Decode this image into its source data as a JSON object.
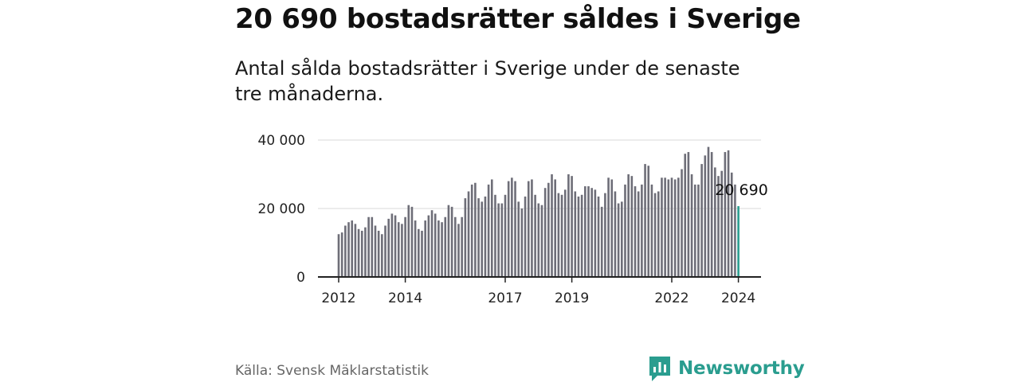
{
  "title": "20 690 bostadsrätter såldes i Sverige",
  "subtitle": "Antal sålda bostadsrätter i Sverige under de senaste tre månaderna.",
  "source": "Källa: Svensk Mäklarstatistik",
  "brand": {
    "name": "Newsworthy",
    "color": "#2a9d8f",
    "icon": "bar-chart-speech-bubble-icon"
  },
  "colors": {
    "bar": "#6e6e78",
    "highlight": "#2a9d8f",
    "grid": "#d9d9d9",
    "axis": "#222222"
  },
  "chart_data": {
    "type": "bar",
    "title": "20 690 bostadsrätter såldes i Sverige",
    "xlabel": "",
    "ylabel": "",
    "ylim": [
      0,
      40000
    ],
    "yticks": [
      0,
      20000,
      40000
    ],
    "ytick_labels": [
      "0",
      "20 000",
      "40 000"
    ],
    "x_start": "2012-01",
    "xticks": [
      {
        "label": "2012",
        "index": 0
      },
      {
        "label": "2014",
        "index": 20
      },
      {
        "label": "2017",
        "index": 50
      },
      {
        "label": "2019",
        "index": 70
      },
      {
        "label": "2022",
        "index": 100
      },
      {
        "label": "2024",
        "index": 120
      }
    ],
    "values": [
      12500,
      13000,
      15000,
      16000,
      16500,
      15500,
      14000,
      13500,
      14500,
      17500,
      17500,
      15000,
      13500,
      12500,
      15000,
      17000,
      18500,
      18000,
      16000,
      15500,
      17500,
      21000,
      20500,
      16500,
      14000,
      13500,
      16500,
      18000,
      19500,
      18500,
      16500,
      16000,
      17500,
      21000,
      20500,
      17500,
      15500,
      17500,
      23000,
      25000,
      27000,
      27500,
      23000,
      22000,
      23500,
      27000,
      28500,
      24000,
      21500,
      21500,
      24000,
      28000,
      29000,
      28000,
      22000,
      20000,
      23500,
      28000,
      28500,
      24000,
      21500,
      21000,
      26000,
      27500,
      30000,
      28500,
      24500,
      24000,
      25500,
      30000,
      29500,
      25000,
      23500,
      24000,
      26500,
      26500,
      26000,
      25500,
      23500,
      20500,
      24500,
      29000,
      28500,
      25000,
      21500,
      22000,
      27000,
      30000,
      29500,
      26500,
      25000,
      27000,
      33000,
      32500,
      27000,
      24500,
      25000,
      29000,
      29000,
      28500,
      29000,
      28500,
      29000,
      31500,
      36000,
      36500,
      30000,
      27000,
      27000,
      33000,
      35500,
      38000,
      36500,
      32000,
      29500,
      31000,
      36500,
      37000,
      30500,
      27000,
      20690
    ],
    "annotation": {
      "text": "20 690",
      "index": 120
    },
    "highlight_index": 120
  }
}
